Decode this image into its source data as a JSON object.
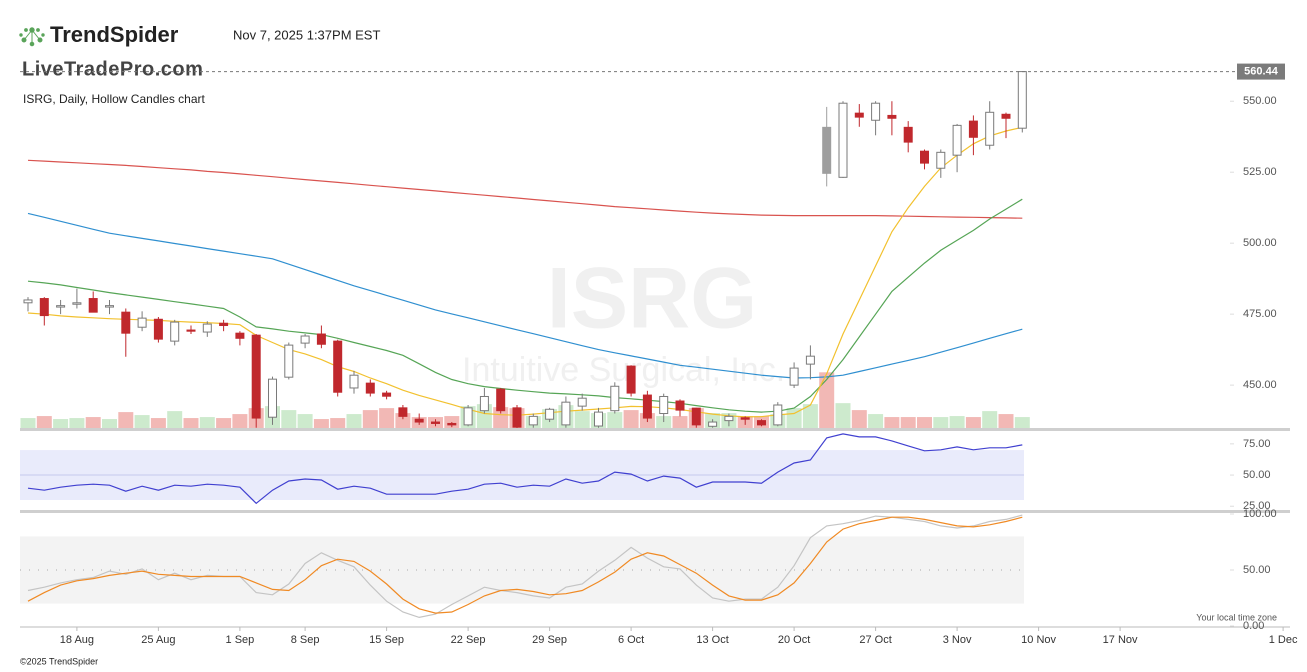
{
  "header": {
    "brand": "TrendSpider",
    "timestamp": "Nov 7, 2025 1:37PM EST",
    "watermark_site": "LiveTradePro.com",
    "chart_label": "ISRG, Daily, Hollow Candles chart",
    "symbol_watermark": "ISRG",
    "company_watermark": "Intuitive Surgical, Inc.",
    "timezone_note": "Your local time zone",
    "copyright": "©2025 TrendSpider"
  },
  "chart_data": [
    {
      "type": "candlestick",
      "x": [
        "2025-08-13",
        "2025-08-14",
        "2025-08-15",
        "2025-08-18",
        "2025-08-19",
        "2025-08-20",
        "2025-08-21",
        "2025-08-22",
        "2025-08-25",
        "2025-08-26",
        "2025-08-27",
        "2025-08-28",
        "2025-08-29",
        "2025-09-02",
        "2025-09-03",
        "2025-09-04",
        "2025-09-05",
        "2025-09-08",
        "2025-09-09",
        "2025-09-10",
        "2025-09-11",
        "2025-09-12",
        "2025-09-15",
        "2025-09-16",
        "2025-09-17",
        "2025-09-18",
        "2025-09-19",
        "2025-09-22",
        "2025-09-23",
        "2025-09-24",
        "2025-09-25",
        "2025-09-26",
        "2025-09-29",
        "2025-09-30",
        "2025-10-01",
        "2025-10-02",
        "2025-10-03",
        "2025-10-06",
        "2025-10-07",
        "2025-10-08",
        "2025-10-09",
        "2025-10-10",
        "2025-10-13",
        "2025-10-14",
        "2025-10-15",
        "2025-10-16",
        "2025-10-17",
        "2025-10-20",
        "2025-10-21",
        "2025-10-22",
        "2025-10-23",
        "2025-10-24",
        "2025-10-27",
        "2025-10-28",
        "2025-10-29",
        "2025-10-30",
        "2025-10-31",
        "2025-11-03",
        "2025-11-04",
        "2025-11-05",
        "2025-11-06",
        "2025-11-07"
      ],
      "xticks": [
        {
          "value": "2025-08-18",
          "label": "18 Aug"
        },
        {
          "value": "2025-08-25",
          "label": "25 Aug"
        },
        {
          "value": "2025-09-01",
          "label": "1 Sep"
        },
        {
          "value": "2025-09-08",
          "label": "8 Sep"
        },
        {
          "value": "2025-09-15",
          "label": "15 Sep"
        },
        {
          "value": "2025-09-22",
          "label": "22 Sep"
        },
        {
          "value": "2025-09-29",
          "label": "29 Sep"
        },
        {
          "value": "2025-10-06",
          "label": "6 Oct"
        },
        {
          "value": "2025-10-13",
          "label": "13 Oct"
        },
        {
          "value": "2025-10-20",
          "label": "20 Oct"
        },
        {
          "value": "2025-10-27",
          "label": "27 Oct"
        },
        {
          "value": "2025-11-03",
          "label": "3 Nov"
        },
        {
          "value": "2025-11-10",
          "label": "10 Nov"
        },
        {
          "value": "2025-11-17",
          "label": "17 Nov"
        },
        {
          "value": "2025-12-01",
          "label": "1 Dec"
        }
      ],
      "ohlc": [
        [
          479,
          481,
          476,
          480
        ],
        [
          480.5,
          481,
          471,
          474.5
        ],
        [
          477.5,
          480,
          475,
          478
        ],
        [
          478.5,
          484,
          477,
          479
        ],
        [
          480.5,
          483,
          476,
          475.7
        ],
        [
          477.5,
          480,
          475,
          478
        ],
        [
          475.7,
          477,
          460,
          468.3
        ],
        [
          470.4,
          476,
          469,
          473.6
        ],
        [
          473.2,
          474,
          465,
          466.2
        ],
        [
          465.5,
          473,
          464,
          472.2
        ],
        [
          469.4,
          471,
          468,
          469
        ],
        [
          468.7,
          472.5,
          467,
          471.5
        ],
        [
          471.8,
          473,
          469,
          471
        ],
        [
          468.3,
          469,
          464,
          466.5
        ],
        [
          467.6,
          468,
          435,
          438.4
        ],
        [
          438.7,
          453,
          436,
          452.1
        ],
        [
          452.8,
          465,
          452,
          464.1
        ],
        [
          464.8,
          468,
          463,
          467.3
        ],
        [
          468,
          471,
          463,
          464.4
        ],
        [
          465.5,
          466,
          446,
          447.5
        ],
        [
          449,
          455,
          447,
          453.5
        ],
        [
          450.7,
          452,
          446,
          447.2
        ],
        [
          447.2,
          448,
          445,
          446.1
        ],
        [
          442,
          443,
          438,
          439
        ],
        [
          438,
          440,
          436,
          437
        ],
        [
          437,
          438,
          435.5,
          436.5
        ],
        [
          436.5,
          437,
          435.2,
          436
        ],
        [
          436,
          443,
          435.5,
          442
        ],
        [
          441,
          449,
          440,
          446
        ],
        [
          448.6,
          449,
          440,
          441
        ],
        [
          442,
          443,
          434.5,
          435.2
        ],
        [
          436,
          440,
          435,
          439
        ],
        [
          438,
          442,
          437,
          441.5
        ],
        [
          436,
          446,
          435,
          444
        ],
        [
          442.6,
          447,
          441,
          445.4
        ],
        [
          435.6,
          442,
          435,
          440.5
        ],
        [
          441,
          451,
          440,
          449.6
        ],
        [
          456.7,
          457,
          446,
          447.2
        ],
        [
          446.5,
          448,
          437,
          438.4
        ],
        [
          440,
          447,
          437,
          446
        ],
        [
          444.4,
          445,
          439,
          441.2
        ],
        [
          441.9,
          442,
          435,
          436
        ],
        [
          435.5,
          438,
          435,
          437
        ],
        [
          437.5,
          440,
          435.5,
          439
        ],
        [
          438.5,
          439,
          436,
          438
        ],
        [
          437.5,
          438,
          435.5,
          436
        ],
        [
          436,
          444,
          435.5,
          443
        ],
        [
          450,
          458,
          449,
          456
        ],
        [
          457.4,
          464,
          452,
          460.2
        ],
        [
          540.8,
          548,
          520,
          524.6
        ],
        [
          523.2,
          550,
          523,
          549.3
        ],
        [
          545.8,
          549,
          541,
          544.4
        ],
        [
          543.3,
          550,
          538,
          549.3
        ],
        [
          545,
          550,
          538,
          544
        ],
        [
          540.8,
          543,
          532,
          535.6
        ],
        [
          532.4,
          533,
          526,
          528.2
        ],
        [
          526.4,
          533,
          523,
          532
        ],
        [
          531,
          542,
          525,
          541.5
        ],
        [
          543,
          545,
          531,
          537.3
        ],
        [
          534.5,
          550,
          533,
          546.1
        ],
        [
          545.4,
          546,
          537,
          544
        ],
        [
          540.5,
          560.44,
          539,
          560.44
        ]
      ],
      "colors": {
        "up_outline": "#7a7a7a",
        "down": "#c0282d",
        "neutral": "#9e9e9e"
      },
      "volume": {
        "values": [
          1.5,
          1.8,
          1.35,
          1.5,
          1.65,
          1.35,
          2.4,
          1.95,
          1.5,
          2.55,
          1.5,
          1.65,
          1.5,
          2.1,
          3,
          3.3,
          2.7,
          2.1,
          1.35,
          1.5,
          2.1,
          2.7,
          3,
          2.25,
          1.65,
          1.65,
          1.8,
          3.3,
          3.6,
          3.15,
          3,
          1.8,
          2.85,
          3.45,
          2.55,
          2.25,
          2.4,
          2.7,
          2.25,
          1.8,
          1.8,
          3,
          2.25,
          2.25,
          1.8,
          1.8,
          2.1,
          3,
          3.6,
          8.4,
          3.75,
          2.7,
          2.1,
          1.65,
          1.65,
          1.65,
          1.65,
          1.8,
          1.65,
          2.55,
          2.1,
          1.65
        ],
        "ylim": [
          0,
          54
        ],
        "up_color": "#cdeacd",
        "down_color": "#f2b8b5"
      },
      "series": [
        {
          "color": "#d9534f",
          "values": [
            529.2,
            528.9,
            528.6,
            528.3,
            528,
            527.7,
            527.4,
            527,
            526.6,
            526.2,
            525.8,
            525.3,
            524.9,
            524.4,
            523.9,
            523.4,
            522.9,
            522.4,
            521.9,
            521.4,
            520.9,
            520.4,
            519.9,
            519.4,
            518.9,
            518.4,
            517.9,
            517.4,
            516.9,
            516.4,
            515.9,
            515.4,
            514.9,
            514.4,
            513.9,
            513.4,
            512.9,
            512.5,
            512.1,
            511.7,
            511.3,
            510.9,
            510.6,
            510.3,
            510.1,
            509.9,
            509.8,
            509.7,
            509.7,
            509.7,
            509.7,
            509.7,
            509.7,
            509.6,
            509.5,
            509.4,
            509.3,
            509.2,
            509.1,
            509,
            508.9,
            508.8
          ]
        },
        {
          "color": "#2f8fd0",
          "values": [
            510.5,
            509.1,
            507.7,
            506.3,
            504.9,
            503.5,
            502.6,
            501.7,
            500.8,
            499.9,
            499,
            498.1,
            497.2,
            496.3,
            495.4,
            494.5,
            492.6,
            490.7,
            488.8,
            486.9,
            485,
            483.3,
            481.6,
            479.9,
            478.2,
            476.5,
            475.1,
            473.7,
            472.3,
            470.9,
            469.5,
            468.1,
            466.7,
            465.3,
            463.9,
            462.5,
            461.4,
            460.3,
            459.2,
            458.1,
            457,
            456.3,
            455.6,
            454.9,
            454.2,
            453.5,
            453,
            452.5,
            452.6,
            452.9,
            453.5,
            454.8,
            456.1,
            457.4,
            458.7,
            460,
            461.6,
            463.2,
            464.8,
            466.5,
            468.1,
            469.7
          ]
        },
        {
          "color": "#56a556",
          "values": [
            486.6,
            486,
            485.3,
            484.4,
            483.5,
            482.6,
            481.8,
            481,
            480.2,
            479.4,
            478.6,
            477.8,
            477,
            474,
            470.5,
            469.8,
            469,
            468.4,
            467.8,
            466.5,
            465,
            463.6,
            462.2,
            460.5,
            457.5,
            454.5,
            452,
            450.5,
            449.5,
            448.8,
            448.2,
            447.7,
            447.2,
            446.9,
            446.6,
            446.2,
            445.6,
            445.2,
            444.7,
            444.2,
            443.6,
            442.8,
            442,
            441.3,
            440.8,
            440.5,
            440.8,
            441.9,
            446,
            452,
            459,
            467,
            475,
            483,
            488,
            493,
            497.5,
            501,
            504.5,
            508.5,
            512,
            515.5
          ]
        },
        {
          "color": "#f2c12e",
          "values": [
            475.4,
            475,
            474.4,
            474,
            473.7,
            473.4,
            473.2,
            473,
            472.8,
            472.5,
            472.2,
            472,
            471.7,
            471.3,
            467.5,
            465,
            462.5,
            461,
            459,
            456.5,
            454.8,
            452.5,
            450.5,
            448.2,
            446.4,
            444.8,
            443.2,
            441.5,
            440,
            439.6,
            439.4,
            439.8,
            440.3,
            440.8,
            441.2,
            441.6,
            442,
            442.5,
            442.4,
            442,
            441.4,
            440.6,
            439.8,
            439.2,
            438.8,
            438.9,
            439.5,
            440,
            443,
            454,
            468,
            480,
            492,
            504,
            512.5,
            520,
            526.5,
            531,
            535,
            537.8,
            539.5,
            540.8
          ]
        }
      ],
      "ylim": [
        434.9,
        561
      ],
      "yticks": [
        {
          "value": 450,
          "label": "450.00"
        },
        {
          "value": 475,
          "label": "475.00"
        },
        {
          "value": 500,
          "label": "500.00"
        },
        {
          "value": 525,
          "label": "525.00"
        },
        {
          "value": 550,
          "label": "550.00"
        }
      ],
      "last_price": {
        "value": 560.44,
        "label": "560.44"
      }
    },
    {
      "type": "line",
      "series": [
        {
          "color": "#4040d0",
          "values": [
            39.5,
            37.9,
            40.3,
            41.9,
            42.7,
            41.9,
            37.1,
            41.1,
            37.9,
            41.9,
            41.1,
            42.7,
            41.9,
            40.3,
            27.4,
            37.9,
            45.2,
            46.8,
            46,
            38.7,
            41.1,
            39.5,
            34.7,
            34.7,
            34.7,
            34.7,
            37.1,
            38.7,
            42.7,
            43.5,
            40.3,
            41.9,
            41.1,
            46.8,
            43.5,
            45.2,
            52.4,
            50.8,
            45.2,
            49.2,
            47.6,
            40.3,
            44.4,
            44.4,
            44.4,
            43.5,
            52.4,
            59.7,
            62.1,
            79.8,
            83,
            80.6,
            80.6,
            77.4,
            73.4,
            69.4,
            70.2,
            72.6,
            70.2,
            71.8,
            71.8,
            74.2
          ]
        }
      ],
      "ylim": [
        22,
        84.5
      ],
      "yticks": [
        {
          "value": 25,
          "label": "25.00"
        },
        {
          "value": 50,
          "label": "50.00"
        },
        {
          "value": 75,
          "label": "75.00"
        }
      ],
      "band": [
        30,
        70
      ],
      "band_color": "#e9ebfb",
      "midline": 50
    },
    {
      "type": "line",
      "series": [
        {
          "color": "#c4c4c4",
          "values": [
            31.7,
            34.6,
            38.5,
            41.3,
            43.3,
            49,
            46.2,
            51,
            41.3,
            47.1,
            41.3,
            45.2,
            44.2,
            44.2,
            29.8,
            27.9,
            37.5,
            55.8,
            65.4,
            58.7,
            52.9,
            36.5,
            22.1,
            12.5,
            7.7,
            10.6,
            19.2,
            26.9,
            34.6,
            31.7,
            29.8,
            26.9,
            25,
            34.6,
            37.5,
            49,
            58.7,
            70.2,
            60.6,
            52.9,
            51,
            36.5,
            25,
            22.1,
            24,
            24,
            34.6,
            53.8,
            78.8,
            89.4,
            91.3,
            94.2,
            98.1,
            97.1,
            95.2,
            93.3,
            89.4,
            87.5,
            89.4,
            93.3,
            95.2,
            99
          ]
        },
        {
          "color": "#f08a24",
          "values": [
            22.1,
            29.8,
            36.5,
            40.4,
            42.3,
            45.2,
            47.1,
            49,
            46.2,
            45.2,
            44.2,
            44.2,
            44.2,
            44.2,
            38.5,
            32.7,
            31.7,
            41.3,
            53.8,
            59.6,
            57.7,
            49,
            37.5,
            24,
            15.4,
            11.5,
            12.5,
            19.2,
            26.9,
            31.7,
            32.7,
            30.8,
            27.9,
            28.8,
            31.7,
            39.4,
            48.1,
            59.6,
            65.4,
            62.5,
            54.8,
            47.1,
            36.5,
            26.9,
            23.1,
            23.1,
            27.9,
            38.5,
            55.8,
            75,
            86.5,
            91.3,
            94.2,
            97.1,
            97.1,
            95.2,
            92.3,
            89.4,
            88.5,
            90.4,
            93.3,
            97.1
          ]
        }
      ],
      "ylim": [
        0,
        100
      ],
      "yticks": [
        {
          "value": 0,
          "label": "0.00"
        },
        {
          "value": 50,
          "label": "50.00"
        },
        {
          "value": 100,
          "label": "100.00"
        }
      ],
      "band": [
        20,
        80
      ],
      "band_color": "#f3f3f3",
      "midline": 50
    }
  ]
}
